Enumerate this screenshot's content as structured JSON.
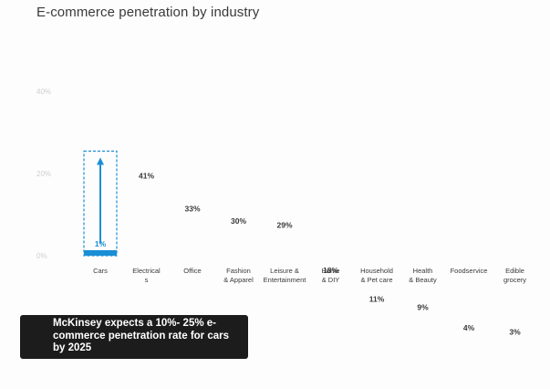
{
  "chart_data": {
    "type": "bar",
    "title": "E-commerce penetration by industry",
    "categories": [
      [
        "Cars"
      ],
      [
        "Electrical",
        "s"
      ],
      [
        "Office"
      ],
      [
        "Fashion",
        "& Apparel"
      ],
      [
        "Leisure &",
        "Entertainment"
      ],
      [
        "Home",
        "& DIY"
      ],
      [
        "Household",
        "& Pet care"
      ],
      [
        "Health",
        "& Beauty"
      ],
      [
        "Foodservice"
      ],
      [
        "Edible",
        "grocery"
      ]
    ],
    "values": [
      1,
      41,
      33,
      30,
      29,
      18,
      11,
      9,
      4,
      3
    ],
    "value_labels": [
      "1%",
      "41%",
      "33%",
      "30%",
      "29%",
      "18%",
      "11%",
      "9%",
      "4%",
      "3%"
    ],
    "y_ticks": [
      {
        "value": 0,
        "label": "0%"
      },
      {
        "value": 20,
        "label": "20%"
      },
      {
        "value": 40,
        "label": "40%"
      }
    ],
    "ylim": [
      0,
      40
    ],
    "highlight_index": 0,
    "highlight_target_range": [
      10,
      25
    ],
    "xlabel": "",
    "ylabel": ""
  },
  "callout": {
    "text": "McKinsey expects a 10%- 25% e-commerce penetration rate for cars by 2025"
  },
  "colors": {
    "highlight": "#1a8fd6",
    "label": "#3a3a3a",
    "tick": "#cfcfcf"
  }
}
